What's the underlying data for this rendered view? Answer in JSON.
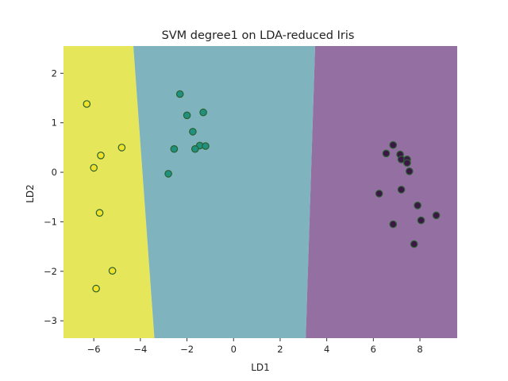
{
  "chart_data": {
    "type": "scatter",
    "title": "SVM degree1 on LDA-reduced Iris",
    "xlabel": "LD1",
    "ylabel": "LD2",
    "xlim": [
      -7.3,
      9.6
    ],
    "ylim": [
      -3.35,
      2.55
    ],
    "xticks": [
      -6,
      -4,
      -2,
      0,
      2,
      4,
      6,
      8
    ],
    "yticks": [
      -3,
      -2,
      -1,
      0,
      1,
      2
    ],
    "grid": false,
    "legend": "none",
    "decision_regions": [
      {
        "class": 0,
        "color": "#e6e65a",
        "polygon": [
          [
            -7.3,
            2.55
          ],
          [
            -4.3,
            2.55
          ],
          [
            -3.4,
            -3.35
          ],
          [
            -7.3,
            -3.35
          ]
        ]
      },
      {
        "class": 1,
        "color": "#7fb4bf",
        "polygon": [
          [
            -4.3,
            2.55
          ],
          [
            3.5,
            2.55
          ],
          [
            3.1,
            -3.35
          ],
          [
            -3.4,
            -3.35
          ]
        ]
      },
      {
        "class": 2,
        "color": "#9470a2",
        "polygon": [
          [
            3.5,
            2.55
          ],
          [
            9.6,
            2.55
          ],
          [
            9.6,
            -3.35
          ],
          [
            3.1,
            -3.35
          ]
        ]
      }
    ],
    "series": [
      {
        "class": 0,
        "color": "#f0e22a",
        "points": [
          {
            "x": -6.3,
            "y": 1.38
          },
          {
            "x": -4.8,
            "y": 0.5
          },
          {
            "x": -5.7,
            "y": 0.34
          },
          {
            "x": -6.0,
            "y": 0.09
          },
          {
            "x": -5.75,
            "y": -0.82
          },
          {
            "x": -5.2,
            "y": -1.99
          },
          {
            "x": -5.9,
            "y": -2.35
          }
        ]
      },
      {
        "class": 1,
        "color": "#21917f",
        "points": [
          {
            "x": -2.3,
            "y": 1.58
          },
          {
            "x": -1.3,
            "y": 1.21
          },
          {
            "x": -2.0,
            "y": 1.15
          },
          {
            "x": -1.75,
            "y": 0.82
          },
          {
            "x": -1.45,
            "y": 0.54
          },
          {
            "x": -1.2,
            "y": 0.53
          },
          {
            "x": -2.55,
            "y": 0.47
          },
          {
            "x": -1.65,
            "y": 0.47
          },
          {
            "x": -2.8,
            "y": -0.03
          }
        ]
      },
      {
        "class": 2,
        "color": "#3d1648",
        "points": [
          {
            "x": 6.85,
            "y": 0.55
          },
          {
            "x": 6.55,
            "y": 0.38
          },
          {
            "x": 7.15,
            "y": 0.36
          },
          {
            "x": 7.2,
            "y": 0.26
          },
          {
            "x": 7.45,
            "y": 0.26
          },
          {
            "x": 7.45,
            "y": 0.19
          },
          {
            "x": 7.55,
            "y": 0.02
          },
          {
            "x": 6.25,
            "y": -0.43
          },
          {
            "x": 7.2,
            "y": -0.35
          },
          {
            "x": 7.9,
            "y": -0.67
          },
          {
            "x": 8.7,
            "y": -0.87
          },
          {
            "x": 8.05,
            "y": -0.97
          },
          {
            "x": 6.85,
            "y": -1.05
          },
          {
            "x": 7.75,
            "y": -1.45
          }
        ]
      }
    ]
  }
}
